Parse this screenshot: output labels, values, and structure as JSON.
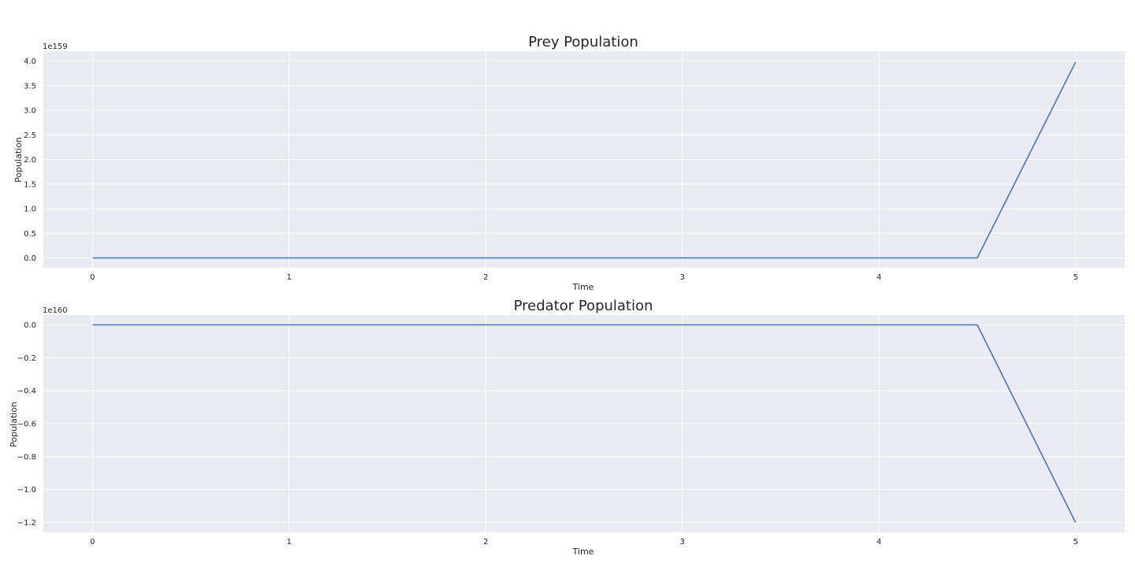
{
  "chart_data": [
    {
      "type": "line",
      "title": "Prey Population",
      "xlabel": "Time",
      "ylabel": "Population",
      "y_offset_label": "1e159",
      "xlim": [
        -0.25,
        5.25
      ],
      "ylim": [
        -0.2,
        4.2
      ],
      "x_ticks": [
        0,
        1,
        2,
        3,
        4,
        5
      ],
      "x_tick_labels": [
        "0",
        "1",
        "2",
        "3",
        "4",
        "5"
      ],
      "y_ticks": [
        0,
        0.5,
        1,
        1.5,
        2,
        2.5,
        3,
        3.5,
        4
      ],
      "y_tick_labels": [
        "0.0",
        "0.5",
        "1.0",
        "1.5",
        "2.0",
        "2.5",
        "3.0",
        "3.5",
        "4.0"
      ],
      "grid": true,
      "series": [
        {
          "x": [
            0,
            0.5,
            1,
            1.5,
            2,
            2.5,
            3,
            3.5,
            4,
            4.5,
            5
          ],
          "y": [
            0,
            0,
            0,
            0,
            0,
            0,
            0,
            0,
            0,
            0,
            3.98
          ]
        }
      ],
      "color": "#4c72b0"
    },
    {
      "type": "line",
      "title": "Predator Population",
      "xlabel": "Time",
      "ylabel": "Population",
      "y_offset_label": "1e160",
      "xlim": [
        -0.25,
        5.25
      ],
      "ylim": [
        -1.26,
        0.06
      ],
      "x_ticks": [
        0,
        1,
        2,
        3,
        4,
        5
      ],
      "x_tick_labels": [
        "0",
        "1",
        "2",
        "3",
        "4",
        "5"
      ],
      "y_ticks": [
        0,
        -0.2,
        -0.4,
        -0.6,
        -0.8,
        -1.0,
        -1.2
      ],
      "y_tick_labels": [
        "0.0",
        "−0.2",
        "−0.4",
        "−0.6",
        "−0.8",
        "−1.0",
        "−1.2"
      ],
      "grid": true,
      "series": [
        {
          "x": [
            0,
            0.5,
            1,
            1.5,
            2,
            2.5,
            3,
            3.5,
            4,
            4.5,
            5
          ],
          "y": [
            0,
            0,
            0,
            0,
            0,
            0,
            0,
            0,
            0,
            0,
            -1.2
          ]
        }
      ],
      "color": "#4c72b0"
    }
  ]
}
